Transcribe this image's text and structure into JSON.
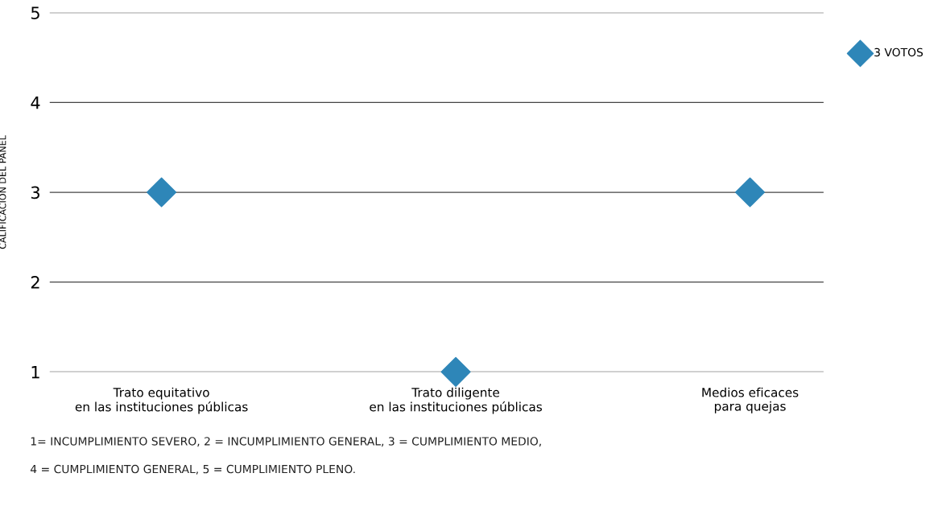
{
  "chart_data": {
    "type": "scatter",
    "ylabel": "CALIFICACION DEL PANEL",
    "categories": [
      "Trato equitativo\nen las instituciones públicas",
      "Trato diligente\nen las instituciones públicas",
      "Medios eficaces\npara quejas"
    ],
    "series": [
      {
        "name": "3 VOTOS",
        "color": "#2e86b8",
        "values": [
          3,
          1,
          3
        ]
      }
    ],
    "ylim": [
      1,
      5
    ],
    "yticks": [
      1,
      2,
      3,
      4,
      5
    ],
    "grid": "y",
    "legend": "top right",
    "marker": "diamond",
    "annotations": [
      "1= INCUMPLIMIENTO SEVERO, 2 = INCUMPLIMIENTO GENERAL, 3 = CUMPLIMIENTO MEDIO,",
      "4 = CUMPLIMIENTO GENERAL, 5 = CUMPLIMIENTO PLENO."
    ]
  }
}
